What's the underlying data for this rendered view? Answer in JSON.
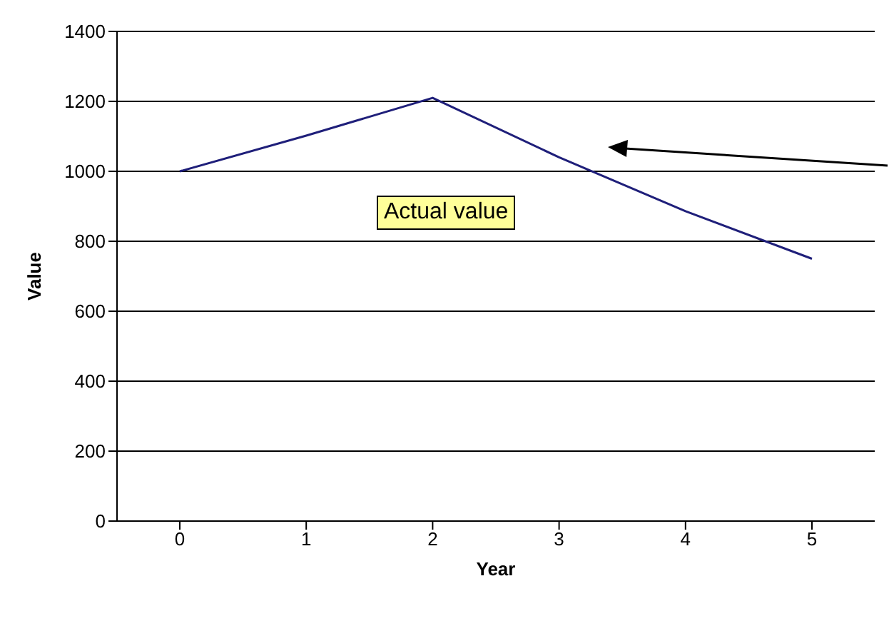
{
  "chart_data": {
    "type": "line",
    "xlabel": "Year",
    "ylabel": "Value",
    "categories": [
      "0",
      "1",
      "2",
      "3",
      "4",
      "5"
    ],
    "series": [
      {
        "color": "#1f1f7a",
        "values": [
          1000,
          1102,
          1210,
          1040,
          886,
          750
        ]
      }
    ],
    "ylim": [
      0,
      1400
    ],
    "yticks": [
      0,
      200,
      400,
      600,
      800,
      1000,
      1200,
      1400
    ],
    "grid": "y",
    "marker": "none",
    "line_style": "solid",
    "annotations": [
      "Actual value"
    ]
  }
}
